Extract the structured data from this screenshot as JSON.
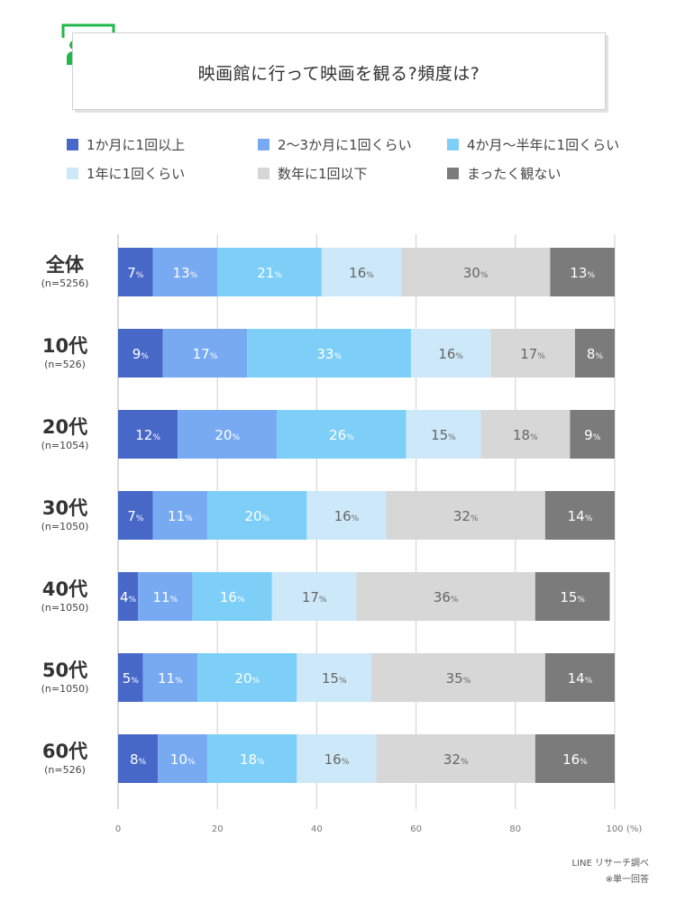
{
  "title": "映画館に行って映画を観る?頻度は?",
  "title_icon": "audience-people-icon",
  "source": "LINE リサーチ調べ",
  "note": "※単一回答",
  "colors": [
    "#4868c8",
    "#78aaf2",
    "#7dcff8",
    "#cde9f9",
    "#d7d7d7",
    "#7b7b7b"
  ],
  "icon_color": "#1fb84c",
  "chart_data": {
    "type": "bar",
    "orientation": "horizontal",
    "stacked": true,
    "unit_suffix": "%",
    "xlabel": "(%)",
    "xlim": [
      0,
      100
    ],
    "xticks": [
      0,
      20,
      40,
      60,
      80,
      100
    ],
    "grid": true,
    "legend_position": "top",
    "categories": [
      "全体",
      "10代",
      "20代",
      "30代",
      "40代",
      "50代",
      "60代"
    ],
    "sample_sizes": [
      "(n=5256)",
      "(n=526)",
      "(n=1054)",
      "(n=1050)",
      "(n=1050)",
      "(n=1050)",
      "(n=526)"
    ],
    "series": [
      {
        "name": "1か月に1回以上",
        "values": [
          7,
          9,
          12,
          7,
          4,
          5,
          8
        ]
      },
      {
        "name": "2〜3か月に1回くらい",
        "values": [
          13,
          17,
          20,
          11,
          11,
          11,
          10
        ]
      },
      {
        "name": "4か月〜半年に1回くらい",
        "values": [
          21,
          33,
          26,
          20,
          16,
          20,
          18
        ]
      },
      {
        "name": "1年に1回くらい",
        "values": [
          16,
          16,
          15,
          16,
          17,
          15,
          16
        ]
      },
      {
        "name": "数年に1回以下",
        "values": [
          30,
          17,
          18,
          32,
          36,
          35,
          32
        ]
      },
      {
        "name": "まったく観ない",
        "values": [
          13,
          8,
          9,
          14,
          15,
          14,
          16
        ]
      }
    ]
  }
}
